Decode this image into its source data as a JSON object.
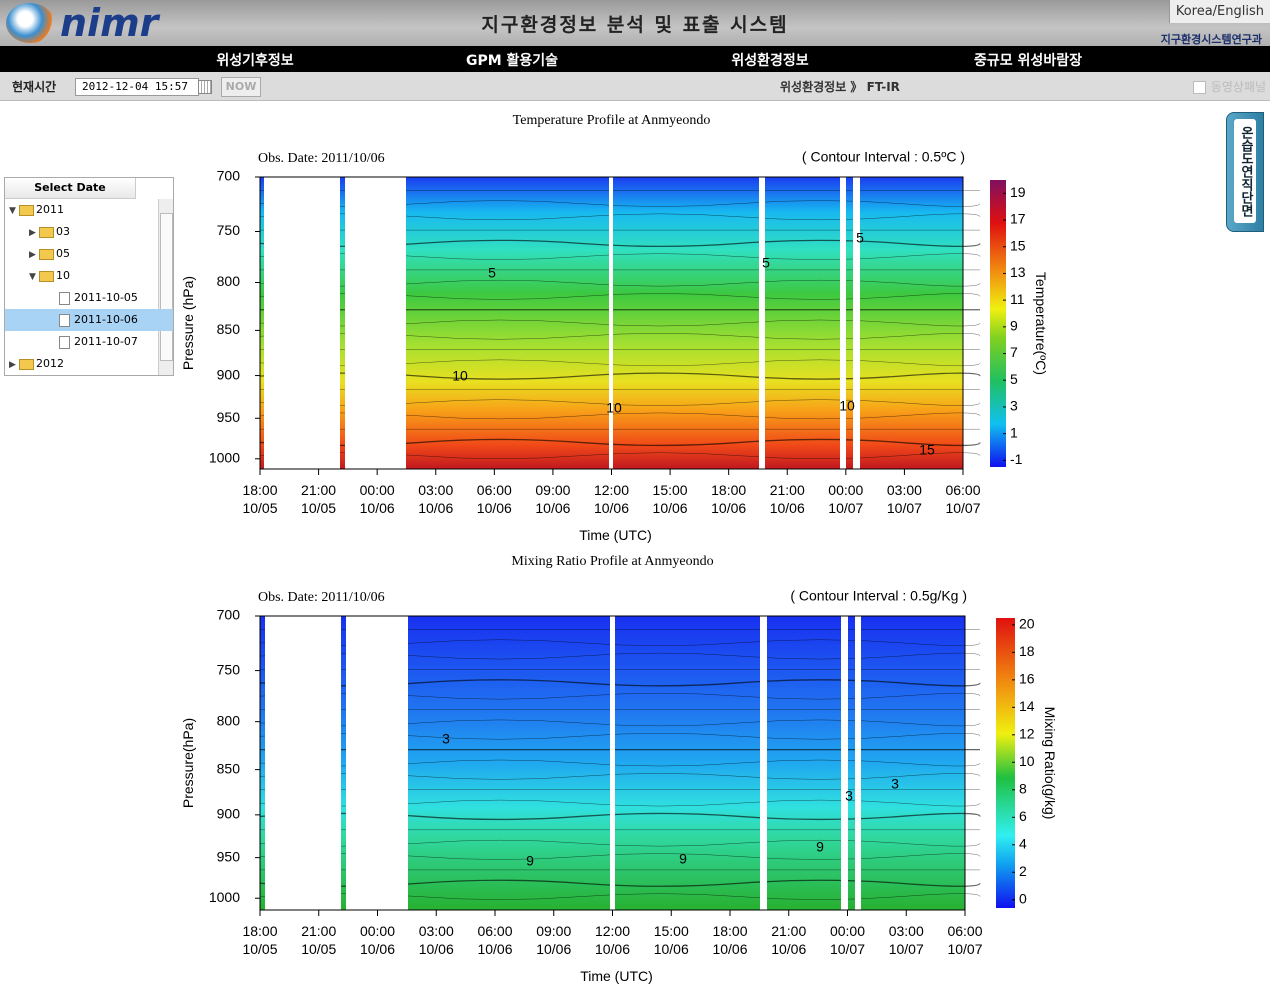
{
  "header": {
    "logo": "nimr",
    "title": "지구환경정보 분석 및 표출 시스템",
    "language": "Korea/English",
    "department": "지구환경시스템연구과"
  },
  "nav": [
    "위성기후정보",
    "GPM 활용기술",
    "위성환경정보",
    "중규모 위성바람장"
  ],
  "toolbar": {
    "time_label": "현재시간",
    "time_value": "2012-12-04 15:57",
    "now_button": "NOW",
    "breadcrumb": "위성환경정보 》 FT-IR",
    "animation_panel": "동영상패널"
  },
  "tree": {
    "header": "Select Date",
    "items": [
      "2011",
      "03",
      "05",
      "10",
      "2011-10-05",
      "2011-10-06",
      "2011-10-07",
      "2012"
    ]
  },
  "side_tab": "온습도연직단면",
  "chart_data": [
    {
      "type": "contour",
      "title": "Temperature Profile at Anmyeondo",
      "obs_date": "Obs. Date: 2011/10/06",
      "contour_interval": "( Contour Interval : 0.5ºC )",
      "xlabel": "Time (UTC)",
      "ylabel": "Pressure (hPa)",
      "xticks": [
        "18:00 10/05",
        "21:00 10/05",
        "00:00 10/06",
        "03:00 10/06",
        "06:00 10/06",
        "09:00 10/06",
        "12:00 10/06",
        "15:00 10/06",
        "18:00 10/06",
        "21:00 10/06",
        "00:00 10/07",
        "03:00 10/07",
        "06:00 10/07"
      ],
      "ylim": [
        700,
        1013
      ],
      "yticks": [
        700,
        750,
        800,
        850,
        900,
        950,
        1000
      ],
      "log_scale": true,
      "colorbar": {
        "label": "Temperature(ºC)",
        "lim": [
          -1.5,
          20
        ],
        "ticks": [
          -1,
          1,
          3,
          5,
          7,
          9,
          11,
          13,
          15,
          17,
          19
        ]
      },
      "contour_labels": [
        5,
        5,
        5,
        10,
        10,
        10,
        15
      ]
    },
    {
      "type": "contour",
      "title": "Mixing Ratio Profile at Anmyeondo",
      "obs_date": "Obs. Date: 2011/10/06",
      "contour_interval": "( Contour Interval : 0.5g/Kg )",
      "xlabel": "Time (UTC)",
      "ylabel": "Pressure(hPa)",
      "xticks": [
        "18:00 10/05",
        "21:00 10/05",
        "00:00 10/06",
        "03:00 10/06",
        "06:00 10/06",
        "09:00 10/06",
        "12:00 10/06",
        "15:00 10/06",
        "18:00 10/06",
        "21:00 10/06",
        "00:00 10/07",
        "03:00 10/07",
        "06:00 10/07"
      ],
      "ylim": [
        700,
        1015
      ],
      "yticks": [
        700,
        750,
        800,
        850,
        900,
        950,
        1000
      ],
      "log_scale": true,
      "colorbar": {
        "label": "Mixing Ratio(g/kg)",
        "lim": [
          -0.6,
          20.5
        ],
        "ticks": [
          0,
          2,
          4,
          6,
          8,
          10,
          12,
          14,
          16,
          18,
          20
        ]
      },
      "contour_labels": [
        3,
        3,
        3,
        9,
        9,
        9
      ]
    }
  ]
}
